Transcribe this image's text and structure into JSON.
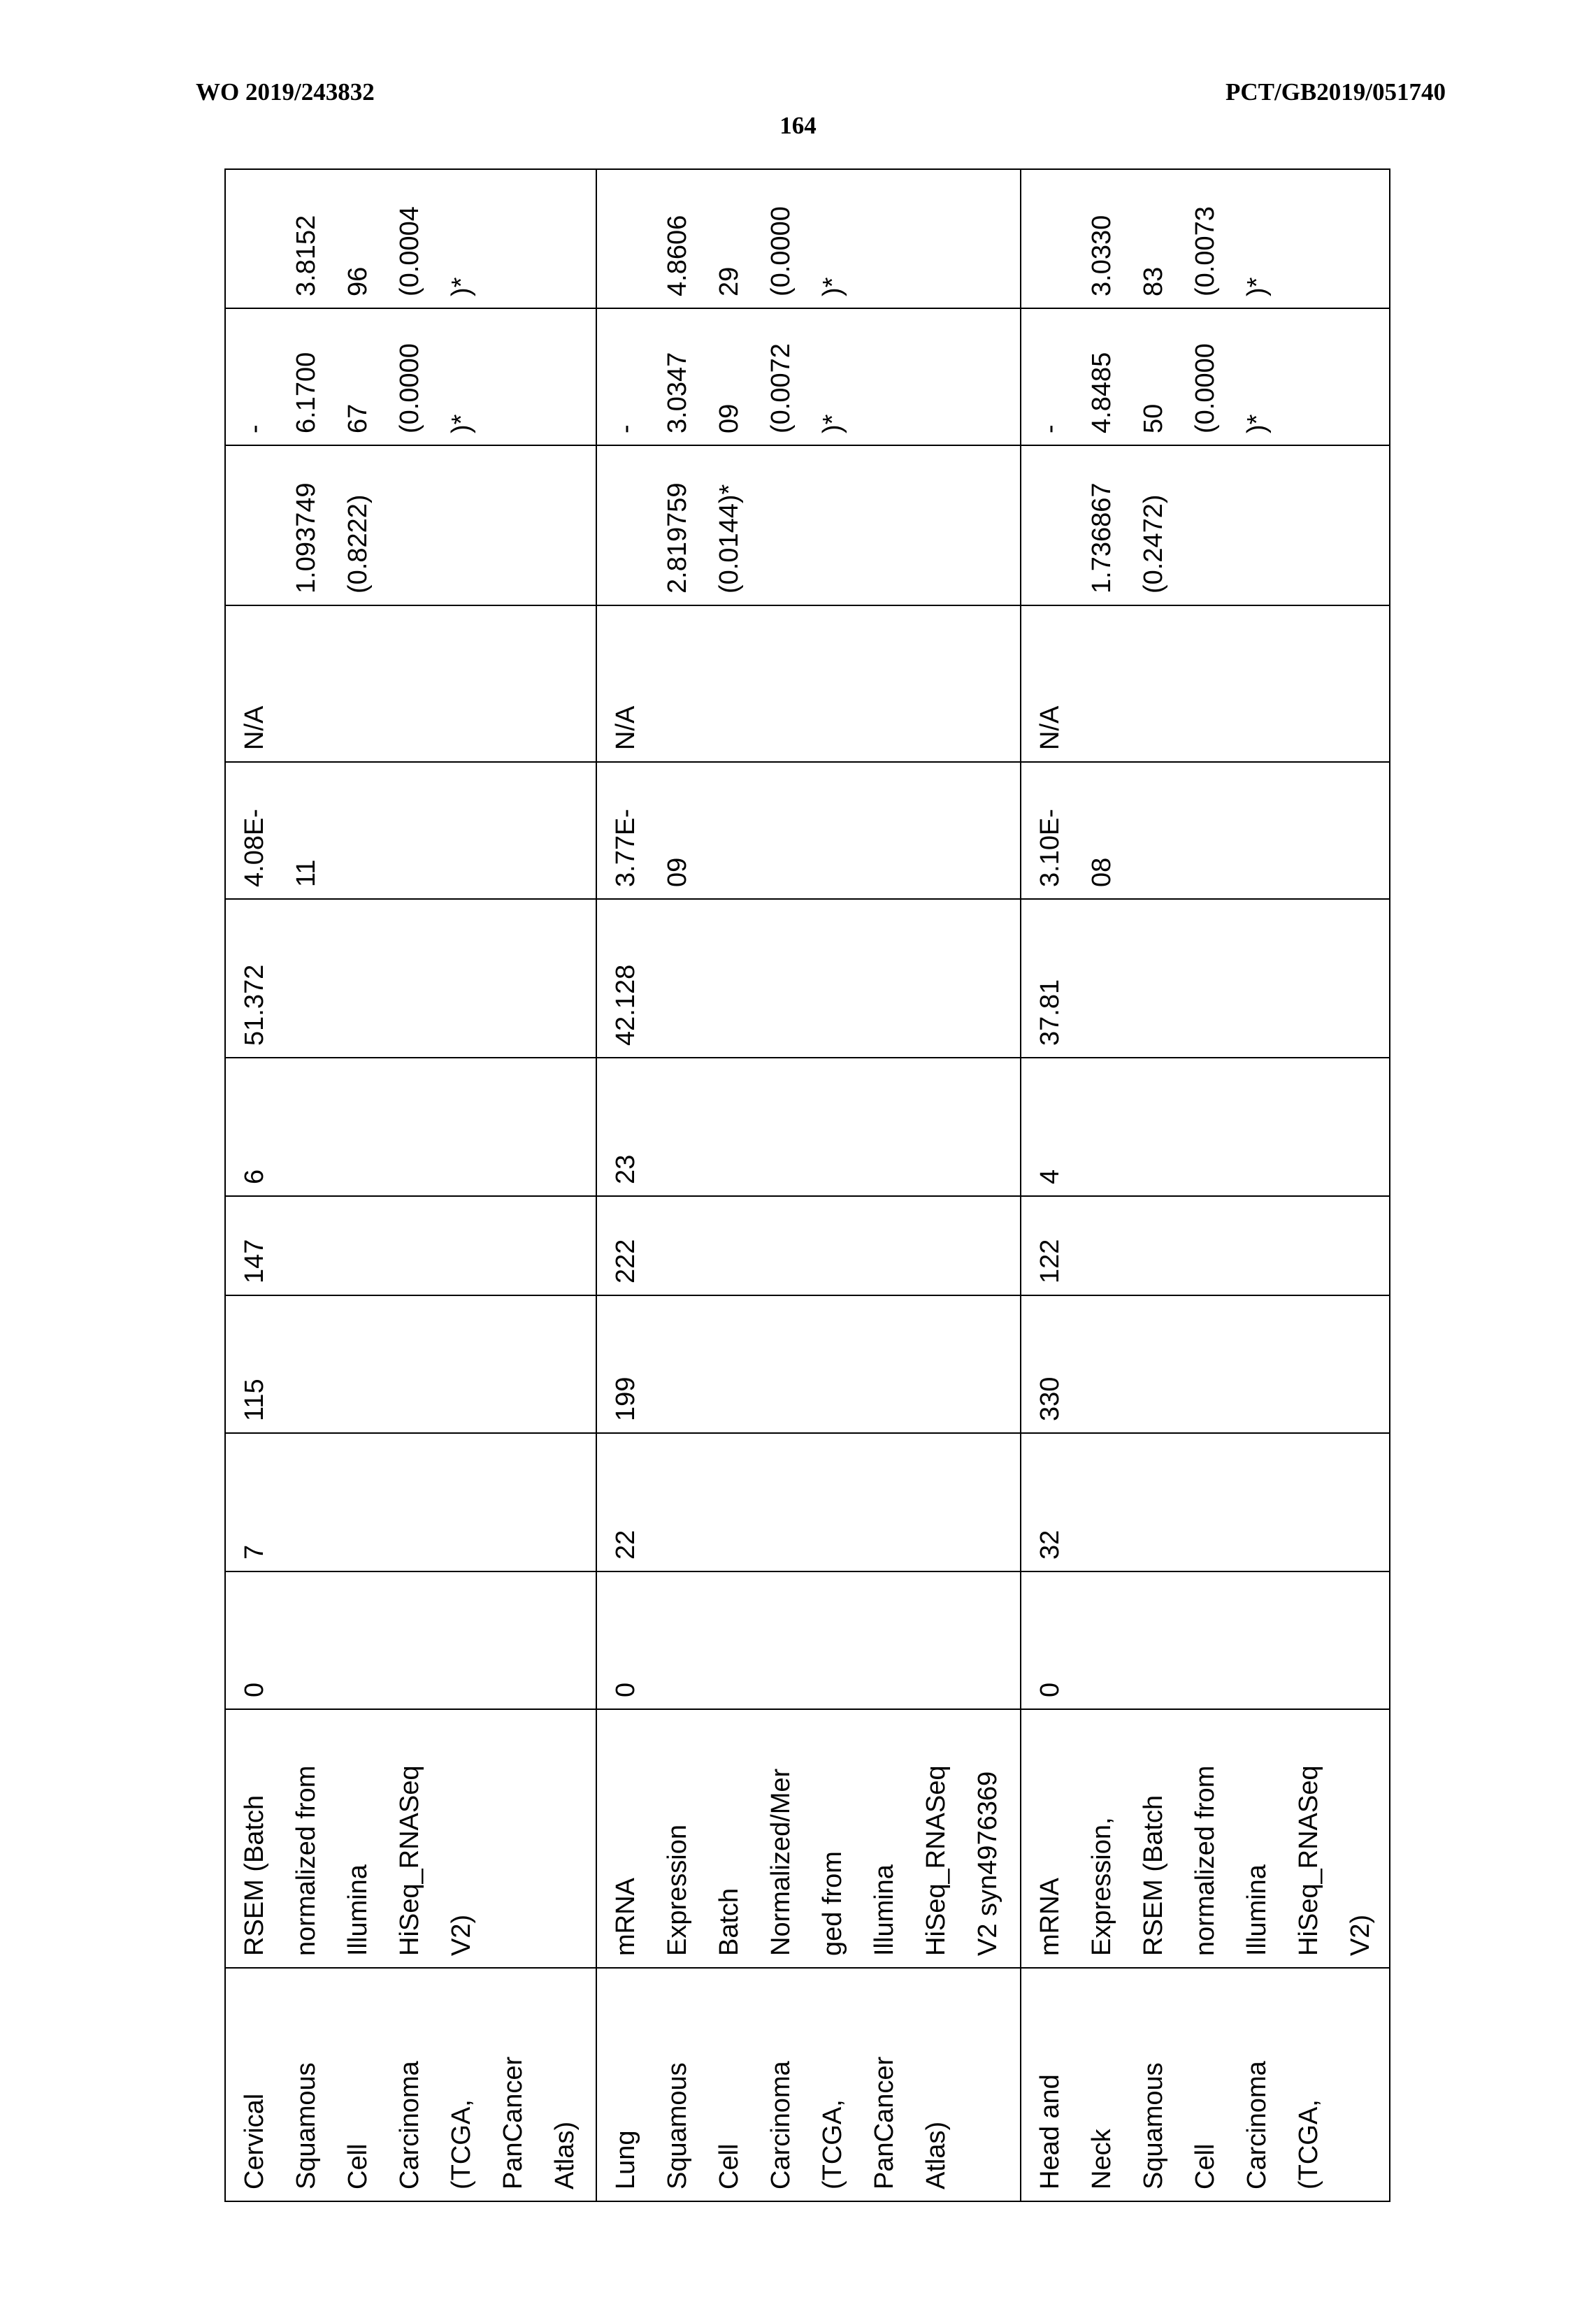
{
  "header": {
    "left": "WO 2019/243832",
    "right": "PCT/GB2019/051740",
    "page_number": "164"
  },
  "table": {
    "rows": [
      {
        "cells": [
          [
            "Cervical",
            "Squamous",
            "Cell",
            "Carcinoma",
            "(TCGA,",
            "PanCancer",
            "Atlas)"
          ],
          [
            "RSEM (Batch",
            "normalized from",
            "Illumina",
            "HiSeq_RNASeq",
            "V2)"
          ],
          [
            "0"
          ],
          [
            "7"
          ],
          [
            "115"
          ],
          [
            "147"
          ],
          [
            "6"
          ],
          [
            "51.372"
          ],
          [
            "4.08E-",
            "11"
          ],
          [
            "N/A"
          ],
          [
            "",
            "1.093749",
            "(0.8222)"
          ],
          [
            "-",
            "6.1700",
            "67",
            "(0.0000",
            ")*"
          ],
          [
            "",
            "3.8152",
            "96",
            "(0.0004",
            ")*"
          ]
        ]
      },
      {
        "cells": [
          [
            "Lung",
            "Squamous",
            "Cell",
            "Carcinoma",
            "(TCGA,",
            "PanCancer",
            "Atlas)"
          ],
          [
            "mRNA",
            "Expression",
            "Batch",
            "Normalized/Mer",
            "ged from",
            "Illumina",
            "HiSeq_RNASeq",
            "V2 syn4976369"
          ],
          [
            "0"
          ],
          [
            "22"
          ],
          [
            "199"
          ],
          [
            "222"
          ],
          [
            "23"
          ],
          [
            "42.128"
          ],
          [
            "3.77E-",
            "09"
          ],
          [
            "N/A"
          ],
          [
            "",
            "2.819759",
            "(0.0144)*"
          ],
          [
            "-",
            "3.0347",
            "09",
            "(0.0072",
            ")*"
          ],
          [
            "",
            "4.8606",
            "29",
            "(0.0000",
            ")*"
          ]
        ]
      },
      {
        "cells": [
          [
            "Head and",
            "Neck",
            "Squamous",
            "Cell",
            "Carcinoma",
            "(TCGA,"
          ],
          [
            "mRNA",
            "Expression,",
            "RSEM (Batch",
            "normalized from",
            "Illumina",
            "HiSeq_RNASeq",
            "V2)"
          ],
          [
            "0"
          ],
          [
            "32"
          ],
          [
            "330"
          ],
          [
            "122"
          ],
          [
            "4"
          ],
          [
            "37.81"
          ],
          [
            "3.10E-",
            "08"
          ],
          [
            "N/A"
          ],
          [
            "",
            "1.736867",
            "(0.2472)"
          ],
          [
            "-",
            "4.8485",
            "50",
            "(0.0000",
            ")*"
          ],
          [
            "",
            "3.0330",
            "83",
            "(0.0073",
            ")*"
          ]
        ]
      }
    ]
  }
}
